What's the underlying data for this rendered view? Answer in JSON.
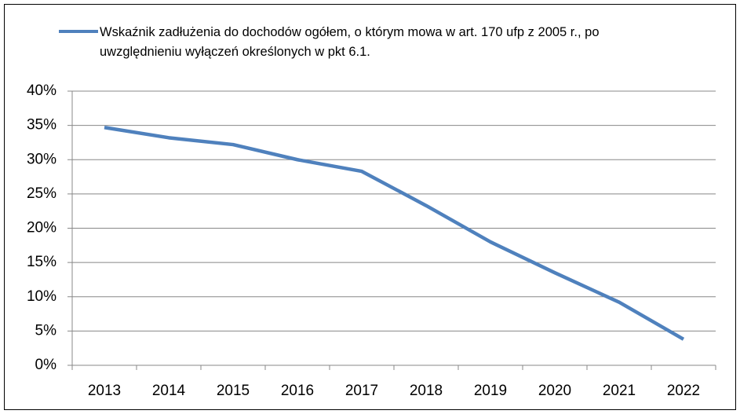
{
  "chart_data": {
    "type": "line",
    "categories": [
      "2013",
      "2014",
      "2015",
      "2016",
      "2017",
      "2018",
      "2019",
      "2020",
      "2021",
      "2022"
    ],
    "series": [
      {
        "name": "Wskaźnik zadłużenia do dochodów ogółem, o którym mowa w art. 170 ufp z 2005 r., po uwzględnieniu wyłączeń określonych w pkt 6.1.",
        "color": "#4f81bd",
        "values": [
          34.7,
          33.2,
          32.2,
          30.0,
          28.3,
          23.3,
          18.0,
          13.5,
          9.2,
          3.8
        ]
      }
    ],
    "ylim": [
      0,
      40
    ],
    "yticks": [
      {
        "value": 0,
        "label": "0%"
      },
      {
        "value": 5,
        "label": "5%"
      },
      {
        "value": 10,
        "label": "10%"
      },
      {
        "value": 15,
        "label": "15%"
      },
      {
        "value": 20,
        "label": "20%"
      },
      {
        "value": 25,
        "label": "25%"
      },
      {
        "value": 30,
        "label": "30%"
      },
      {
        "value": 35,
        "label": "35%"
      },
      {
        "value": 40,
        "label": "40%"
      }
    ],
    "grid": true,
    "legend": "top"
  }
}
